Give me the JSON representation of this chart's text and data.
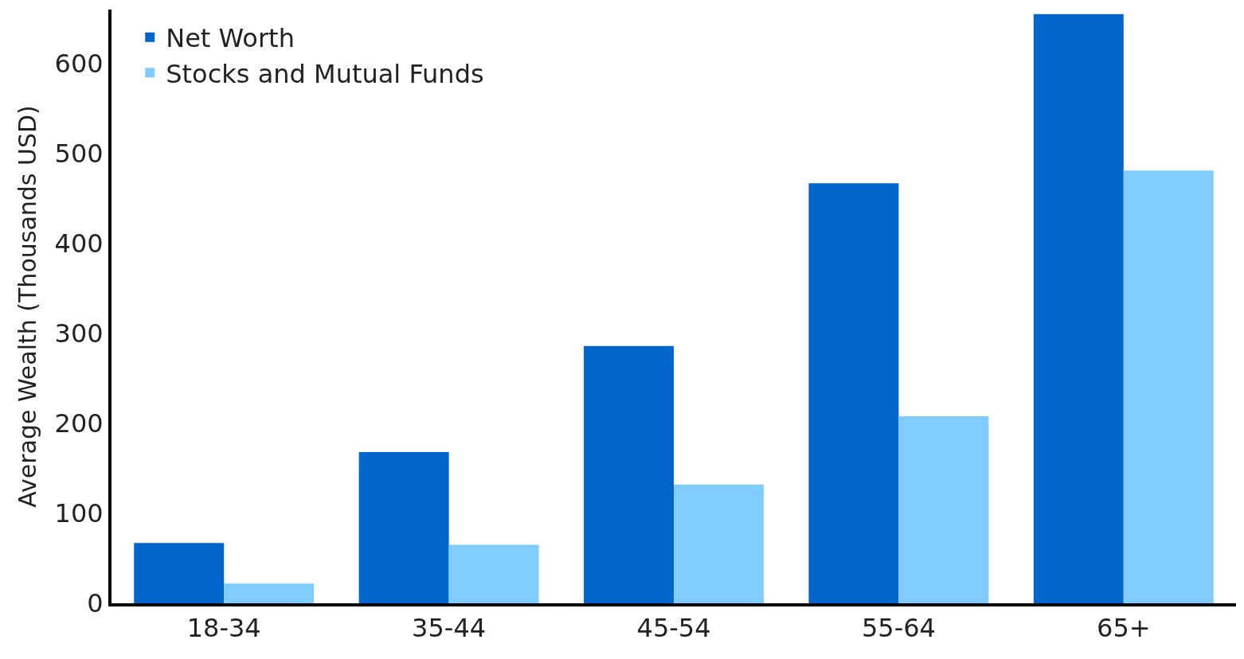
{
  "chart_data": {
    "type": "bar",
    "ylabel": "Average Wealth (Thousands USD)",
    "categories": [
      "18-34",
      "35-44",
      "45-54",
      "55-64",
      "65+"
    ],
    "series": [
      {
        "name": "Net Worth",
        "color": "#0066cc",
        "values": [
          67,
          168,
          286,
          467,
          655
        ]
      },
      {
        "name": "Stocks and Mutual Funds",
        "color": "#80ccff",
        "values": [
          22,
          65,
          132,
          208,
          481
        ]
      }
    ],
    "ylim": [
      0,
      660
    ],
    "yticks": [
      0,
      100,
      200,
      300,
      400,
      500,
      600
    ],
    "legend": "top left"
  }
}
